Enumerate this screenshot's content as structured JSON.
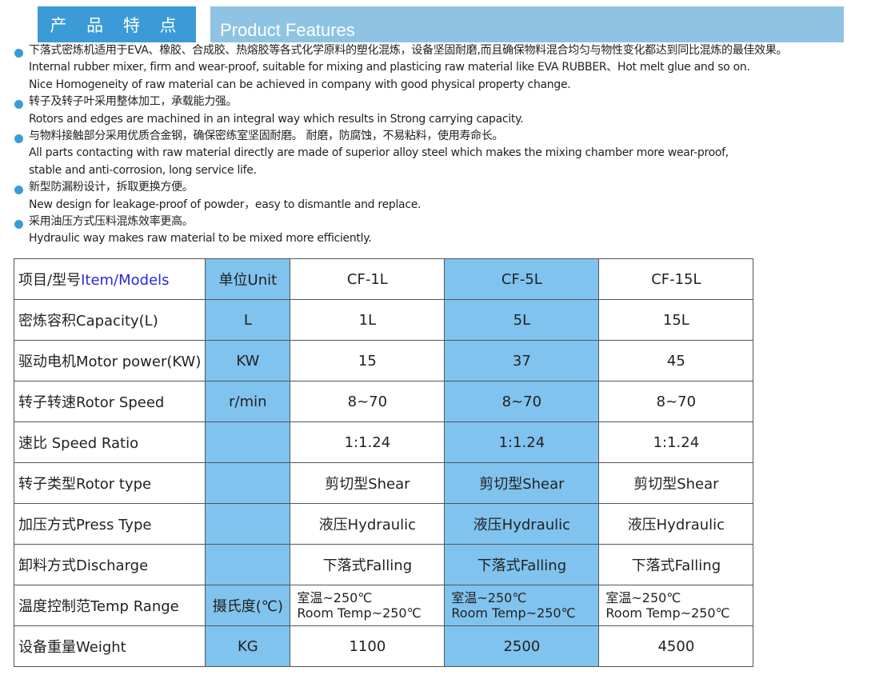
{
  "header": {
    "title_cn": "产 品 特 点",
    "title_en": "Product Features"
  },
  "features": [
    {
      "lines": [
        "下落式密炼机适用于EVA、橡胶、合成胶、热熔胶等各式化学原料的塑化混炼，设备坚固耐磨,而且确保物料混合均匀与物性变化都达到同比混炼的最佳效果。",
        "Internal rubber mixer, firm and wear-proof, suitable for mixing and plasticing raw material like EVA RUBBER、Hot melt glue and so on.",
        "Nice Homogeneity of raw material can be achieved in company with good physical property change."
      ]
    },
    {
      "lines": [
        "转子及转子叶采用整体加工，承载能力强。",
        "Rotors and edges are machined in an integral way which results in Strong carrying capacity."
      ]
    },
    {
      "lines": [
        "与物料接触部分采用优质合金钢，确保密练室坚固耐磨。 耐磨，防腐蚀，不易粘料，使用寿命长。",
        "All parts contacting with raw material directly are made of superior alloy steel which makes the mixing chamber more wear-proof,",
        "stable and anti-corrosion, long service life."
      ]
    },
    {
      "lines": [
        "新型防漏粉设计，拆取更换方便。",
        "New design for leakage-proof of powder，easy to dismantle and replace."
      ]
    },
    {
      "lines": [
        "采用油压方式压料混炼效率更高。",
        "Hydraulic way makes raw material to be mixed more efficiently."
      ]
    }
  ],
  "table": {
    "header": {
      "item_cn": "项目/型号",
      "item_en": "Item/Models",
      "unit": "单位Unit",
      "models": [
        "CF-1L",
        "CF-5L",
        "CF-15L"
      ]
    },
    "rows": [
      {
        "item": "密炼容积Capacity(L)",
        "unit": "L",
        "values": [
          "1L",
          "5L",
          "15L"
        ]
      },
      {
        "item": "驱动电机Motor power(KW)",
        "unit": "KW",
        "values": [
          "15",
          "37",
          "45"
        ]
      },
      {
        "item": "转子转速Rotor Speed",
        "unit": "r/min",
        "values": [
          "8~70",
          "8~70",
          "8~70"
        ]
      },
      {
        "item": "速比  Speed Ratio",
        "unit": "",
        "values": [
          "1:1.24",
          "1:1.24",
          "1:1.24"
        ]
      },
      {
        "item": "转子类型Rotor type",
        "unit": "",
        "values": [
          "剪切型Shear",
          "剪切型Shear",
          "剪切型Shear"
        ]
      },
      {
        "item": "加压方式Press Type",
        "unit": "",
        "values": [
          "液压Hydraulic",
          "液压Hydraulic",
          "液压Hydraulic"
        ]
      },
      {
        "item": "卸料方式Discharge",
        "unit": "",
        "values": [
          "下落式Falling",
          "下落式Falling",
          "下落式Falling"
        ]
      },
      {
        "item": "温度控制范Temp Range",
        "unit": "摄氏度(℃)",
        "values": [
          "室温~250℃|Room Temp~250℃",
          "室温~250℃|Room Temp~250℃",
          "室温~250℃|Room Temp~250℃"
        ]
      },
      {
        "item": "设备重量Weight",
        "unit": "KG",
        "values": [
          "1100",
          "2500",
          "4500"
        ]
      }
    ]
  },
  "colors": {
    "header_dark": "#3b9bd6",
    "header_light": "#8ec3e4",
    "cell_blue": "#80c3ee"
  }
}
